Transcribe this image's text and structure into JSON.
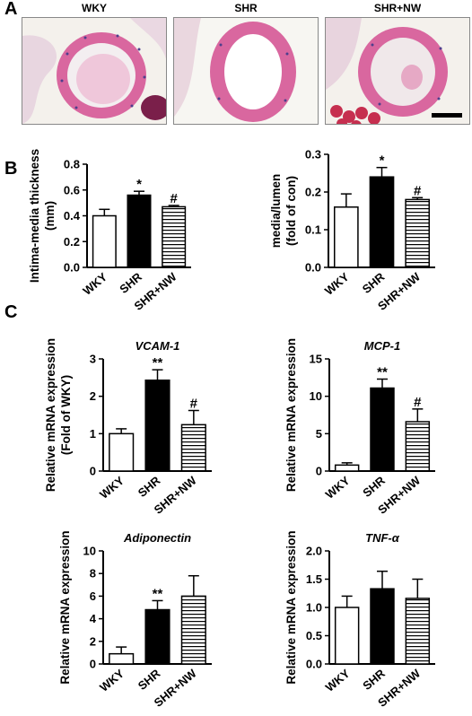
{
  "panels": [
    {
      "letter": "A"
    },
    {
      "letter": "B"
    },
    {
      "letter": "C"
    }
  ],
  "histology": {
    "labels": [
      "WKY",
      "SHR",
      "SHR+NW"
    ],
    "scale_bar": "scale bar"
  },
  "colors": {
    "tissue_pink": "#d9679f",
    "tissue_light": "#efc7da",
    "background": "#f4f1ec",
    "nuclei": "#4d3f8c",
    "bar_wky": "#ffffff",
    "bar_shr": "#000000",
    "bar_shrnw_stripes": "#000000"
  },
  "chart_data": [
    {
      "type": "bar",
      "panel": "B",
      "categories": [
        "WKY",
        "SHR",
        "SHR+NW"
      ],
      "values": [
        0.4,
        0.56,
        0.47
      ],
      "errors": [
        0.05,
        0.03,
        0.01
      ],
      "ylabel": [
        "Intima-media thickness",
        "(mm)"
      ],
      "ylim": [
        0,
        0.8
      ],
      "yticks": [
        "0.0",
        "0.2",
        "0.4",
        "0.6",
        "0.8"
      ],
      "significance": [
        "",
        "*",
        "#"
      ],
      "title": ""
    },
    {
      "type": "bar",
      "panel": "B",
      "categories": [
        "WKY",
        "SHR",
        "SHR+NW"
      ],
      "values": [
        0.16,
        0.24,
        0.18
      ],
      "errors": [
        0.035,
        0.025,
        0.005
      ],
      "ylabel": [
        "media/lumen",
        "(fold of con)"
      ],
      "ylim": [
        0,
        0.3
      ],
      "yticks": [
        "0.0",
        "0.1",
        "0.2",
        "0.3"
      ],
      "significance": [
        "",
        "*",
        "#"
      ],
      "title": ""
    },
    {
      "type": "bar",
      "panel": "C",
      "categories": [
        "WKY",
        "SHR",
        "SHR+NW"
      ],
      "values": [
        1.0,
        2.43,
        1.24
      ],
      "errors": [
        0.13,
        0.28,
        0.38
      ],
      "ylabel": [
        "Relative mRNA expression",
        "(Fold of WKY)"
      ],
      "ylim": [
        0,
        3
      ],
      "yticks": [
        "0",
        "1",
        "2",
        "3"
      ],
      "significance": [
        "",
        "**",
        "#"
      ],
      "title": "VCAM-1"
    },
    {
      "type": "bar",
      "panel": "C",
      "categories": [
        "WKY",
        "SHR",
        "SHR+NW"
      ],
      "values": [
        0.8,
        11.1,
        6.6
      ],
      "errors": [
        0.3,
        1.2,
        1.7
      ],
      "ylabel": [
        "Relative  mRNA expression"
      ],
      "ylim": [
        0,
        15
      ],
      "yticks": [
        "0",
        "5",
        "10",
        "15"
      ],
      "significance": [
        "",
        "**",
        "#"
      ],
      "title": "MCP-1"
    },
    {
      "type": "bar",
      "panel": "C",
      "categories": [
        "WKY",
        "SHR",
        "SHR+NW"
      ],
      "values": [
        0.9,
        4.8,
        6.0
      ],
      "errors": [
        0.6,
        0.8,
        1.8
      ],
      "ylabel": [
        "Relative  mRNA expression"
      ],
      "ylim": [
        0,
        10
      ],
      "yticks": [
        "0",
        "2",
        "4",
        "6",
        "8",
        "10"
      ],
      "significance": [
        "",
        "**",
        ""
      ],
      "title": "Adiponectin"
    },
    {
      "type": "bar",
      "panel": "C",
      "categories": [
        "WKY",
        "SHR",
        "SHR+NW"
      ],
      "values": [
        1.0,
        1.33,
        1.16
      ],
      "errors": [
        0.2,
        0.31,
        0.34
      ],
      "ylabel": [
        "Relative  mRNA expression"
      ],
      "ylim": [
        0,
        2.0
      ],
      "yticks": [
        "0.0",
        "0.5",
        "1.0",
        "1.5",
        "2.0"
      ],
      "significance": [
        "",
        "",
        ""
      ],
      "title": "TNF-α"
    }
  ]
}
